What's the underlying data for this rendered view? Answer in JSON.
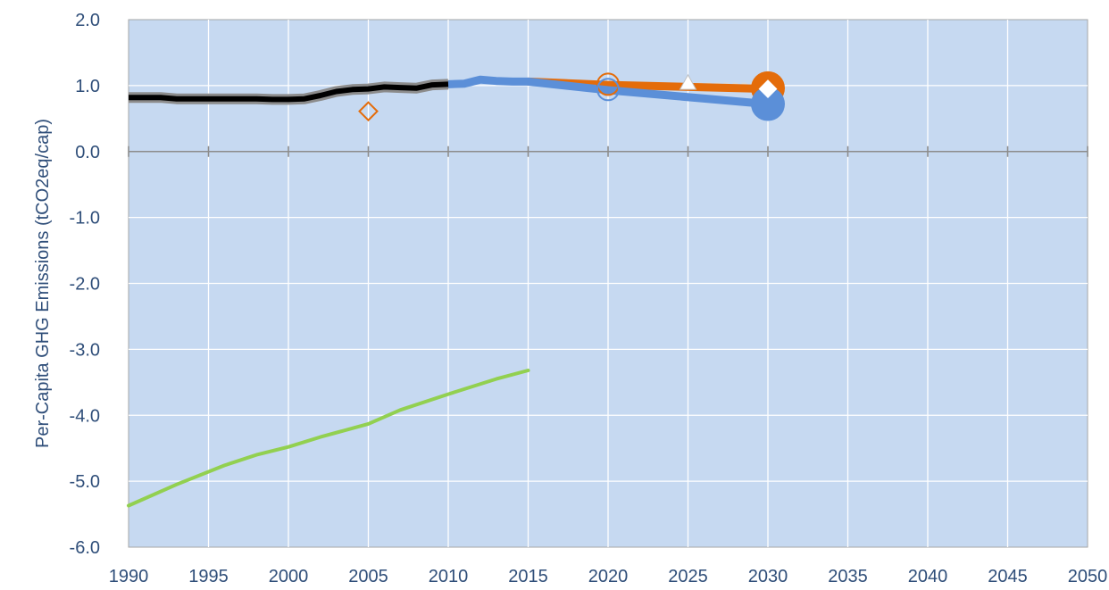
{
  "chart_data": {
    "type": "line",
    "title": "",
    "xlabel": "",
    "ylabel": "Per-Capita GHG Emissions (tCO2eq/cap)",
    "xlim": [
      1990,
      2050
    ],
    "ylim": [
      -6.0,
      2.0
    ],
    "x_ticks": [
      1990,
      1995,
      2000,
      2005,
      2010,
      2015,
      2020,
      2025,
      2030,
      2035,
      2040,
      2045,
      2050
    ],
    "x_tick_labels": [
      "1990",
      "1995",
      "2000",
      "2005",
      "2010",
      "2015",
      "2020",
      "2025",
      "2030",
      "2035",
      "2040",
      "2045",
      "2050"
    ],
    "y_ticks": [
      -6,
      -5,
      -4,
      -3,
      -2,
      -1,
      0,
      1,
      2
    ],
    "y_tick_labels": [
      "-6.0",
      "-5.0",
      "-4.0",
      "-3.0",
      "-2.0",
      "-1.0",
      "0.0",
      "1.0",
      "2.0"
    ],
    "grid": true,
    "legend": "none",
    "colors": {
      "plot_background": "#C6D9F1",
      "grid": "#FFFFFF",
      "zero_line": "#8C8C8C",
      "axis_text": "#2F4E79",
      "historical": "#000000",
      "historical_outline": "#8C8C8C",
      "blue": "#5B8FD8",
      "orange": "#E46C0A",
      "green": "#92D050",
      "dashed": "#D9D9D9"
    },
    "series": [
      {
        "kind": "historical",
        "x": [
          1990,
          1991,
          1992,
          1993,
          1994,
          1995,
          1996,
          1997,
          1998,
          1999,
          2000,
          2001,
          2002,
          2003,
          2004,
          2005,
          2006,
          2007,
          2008,
          2009,
          2010
        ],
        "y": [
          0.82,
          0.82,
          0.82,
          0.8,
          0.8,
          0.8,
          0.8,
          0.8,
          0.8,
          0.79,
          0.79,
          0.8,
          0.85,
          0.91,
          0.94,
          0.95,
          0.98,
          0.97,
          0.96,
          1.01,
          1.02
        ]
      },
      {
        "kind": "blue-line",
        "x": [
          2010,
          2011,
          2012,
          2013,
          2014,
          2015,
          2020,
          2030
        ],
        "y": [
          1.02,
          1.03,
          1.09,
          1.07,
          1.06,
          1.06,
          0.93,
          0.72
        ]
      },
      {
        "kind": "orange-line",
        "x": [
          2015,
          2020,
          2030
        ],
        "y": [
          1.06,
          1.01,
          0.95
        ]
      },
      {
        "kind": "green-line",
        "x": [
          1990,
          1993,
          1996,
          1998,
          2000,
          2002,
          2005,
          2007,
          2010,
          2013,
          2015
        ],
        "y": [
          -5.37,
          -5.05,
          -4.76,
          -4.6,
          -4.48,
          -4.33,
          -4.13,
          -3.92,
          -3.68,
          -3.45,
          -3.32
        ]
      },
      {
        "kind": "dashed-line",
        "x": [
          2025,
          2030
        ],
        "y": [
          1.03,
          1.02
        ]
      }
    ],
    "markers": [
      {
        "name": "orange-diamond-2005",
        "shape": "diamond",
        "style": "hollow",
        "color": "#E46C0A",
        "x": 2005,
        "y": 0.61
      },
      {
        "name": "orange-circle-2020",
        "shape": "circle",
        "style": "hollow",
        "color": "#E46C0A",
        "x": 2020,
        "y": 1.02
      },
      {
        "name": "blue-circle-2020",
        "shape": "circle",
        "style": "hollow",
        "color": "#5B8FD8",
        "x": 2020,
        "y": 0.94
      },
      {
        "name": "white-triangle-2025",
        "shape": "triangle",
        "style": "filled",
        "color": "#FFFFFF",
        "x": 2025,
        "y": 1.04
      },
      {
        "name": "orange-circle-2030",
        "shape": "circle",
        "style": "filled",
        "color": "#E46C0A",
        "x": 2030,
        "y": 0.96
      },
      {
        "name": "blue-circle-2030",
        "shape": "circle",
        "style": "filled",
        "color": "#5B8FD8",
        "x": 2030,
        "y": 0.72
      },
      {
        "name": "white-diamond-2030",
        "shape": "diamond",
        "style": "filled",
        "color": "#FFFFFF",
        "x": 2030,
        "y": 0.95
      }
    ]
  }
}
